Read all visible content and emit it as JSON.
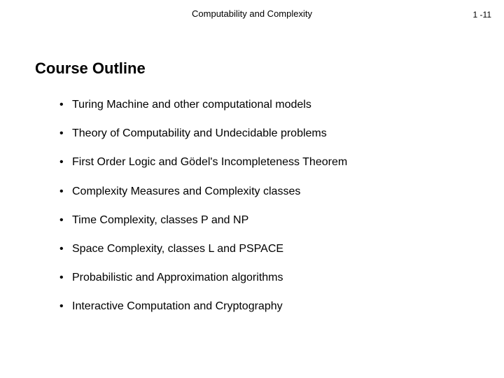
{
  "header": {
    "title": "Computability and Complexity",
    "page_number": "1 -11"
  },
  "section": {
    "title": "Course Outline"
  },
  "bullets": [
    "Turing Machine and other computational models",
    "Theory of Computability and Undecidable problems",
    "First Order Logic and Gödel's Incompleteness Theorem",
    "Complexity Measures and Complexity classes",
    "Time Complexity, classes  P  and  NP",
    "Space Complexity, classes  L  and  PSPACE",
    "Probabilistic and Approximation algorithms",
    "Interactive Computation and Cryptography"
  ],
  "colors": {
    "background": "#ffffff",
    "text": "#000000"
  },
  "typography": {
    "header_fontsize": 13,
    "page_number_fontsize": 12,
    "section_title_fontsize": 22,
    "bullet_fontsize": 16,
    "font_family": "Arial"
  }
}
